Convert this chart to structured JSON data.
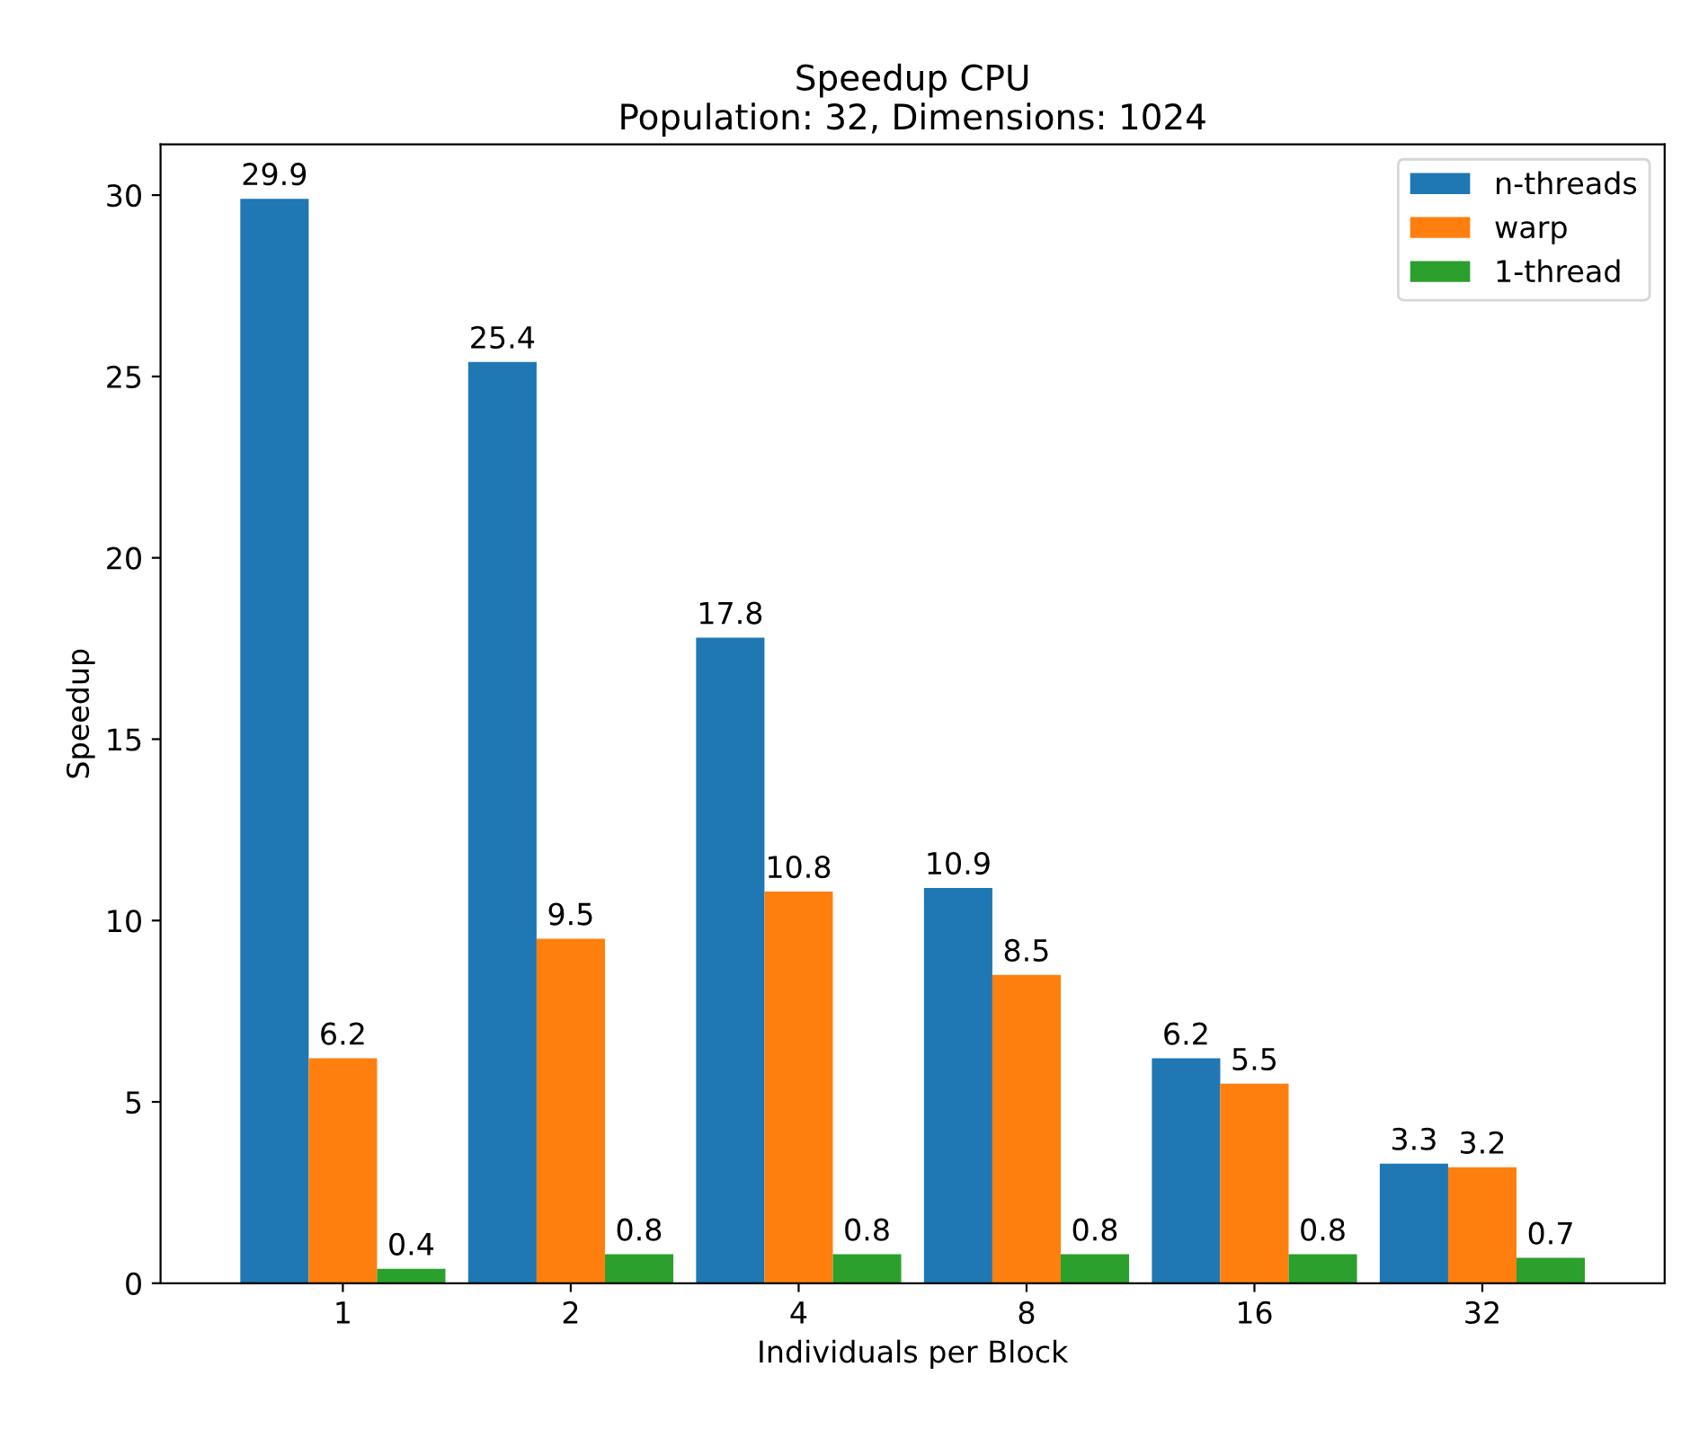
{
  "chart_data": {
    "type": "bar",
    "title": "Speedup CPU\nPopulation: 32, Dimensions: 1024",
    "xlabel": "Individuals per Block",
    "ylabel": "Speedup",
    "categories": [
      "1",
      "2",
      "4",
      "8",
      "16",
      "32"
    ],
    "series": [
      {
        "name": "n-threads",
        "color": "#1f77b4",
        "values": [
          29.9,
          25.4,
          17.8,
          10.9,
          6.2,
          3.3
        ]
      },
      {
        "name": "warp",
        "color": "#ff7f0e",
        "values": [
          6.2,
          9.5,
          10.8,
          8.5,
          5.5,
          3.2
        ]
      },
      {
        "name": "1-thread",
        "color": "#2ca02c",
        "values": [
          0.4,
          0.8,
          0.8,
          0.8,
          0.8,
          0.7
        ]
      }
    ],
    "ylim": [
      0,
      31.4
    ],
    "yticks": [
      0,
      5,
      10,
      15,
      20,
      25,
      30
    ],
    "data_labels": true,
    "legend": "top right",
    "grid": false
  }
}
